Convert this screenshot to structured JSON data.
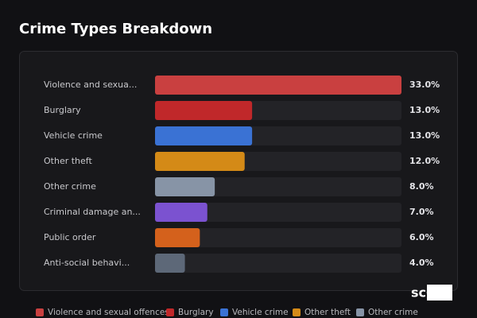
{
  "chart_data": {
    "type": "hbar",
    "title": "Crime Types Breakdown",
    "categories": [
      "Violence and sexua...",
      "Burglary",
      "Vehicle crime",
      "Other theft",
      "Other crime",
      "Criminal damage an...",
      "Public order",
      "Anti-social behavi..."
    ],
    "values": [
      33,
      13,
      13,
      12,
      8,
      7,
      6,
      4
    ],
    "value_labels": [
      "33.0%",
      "13.0%",
      "13.0%",
      "12.0%",
      "8.0%",
      "7.0%",
      "6.0%",
      "4.0%"
    ],
    "colors": [
      "#c94040",
      "#c0282a",
      "#3a72d4",
      "#d48a17",
      "#8794a6",
      "#7b52d0",
      "#d4611c",
      "#5d6878"
    ],
    "xlim": [
      0,
      33
    ],
    "legend": [
      {
        "name": "Violence and sexual offences",
        "color": "#c94040"
      },
      {
        "name": "Burglary",
        "color": "#c0282a"
      },
      {
        "name": "Vehicle crime",
        "color": "#3a72d4"
      },
      {
        "name": "Other theft",
        "color": "#d48a17"
      },
      {
        "name": "Other crime",
        "color": "#8794a6"
      }
    ]
  },
  "watermark": "scOS"
}
